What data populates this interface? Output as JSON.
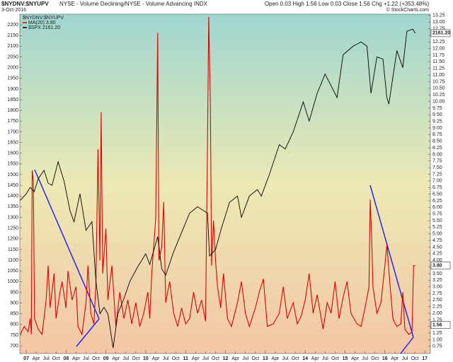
{
  "chart_data": {
    "type": "line",
    "title": "$NYDNV:$NYUPV",
    "subtitle": "NYSE - Volume Declining/NYSE - Volume Advancing INDX",
    "date": "3-Oct-2016",
    "quote": "Open 0.03 High 1.56 Low 0.03 Close 1.56 Chg +1.22 (+353.48%)",
    "credit": "© StockCharts.com",
    "legend_title": "$NYDNV:$NYUPV",
    "legend": "upper left",
    "grid": false,
    "xlim": [
      2006.84,
      2017.14
    ],
    "ylim": [
      664,
      2250
    ],
    "y2lim": [
      0.48,
      13.3
    ],
    "xticks": [
      {
        "value": 2007,
        "label": "07"
      },
      {
        "value": 2007.25,
        "label": "Apr"
      },
      {
        "value": 2007.5,
        "label": "Jul"
      },
      {
        "value": 2007.75,
        "label": "Oct"
      },
      {
        "value": 2008,
        "label": "08"
      },
      {
        "value": 2008.25,
        "label": "Apr"
      },
      {
        "value": 2008.5,
        "label": "Jul"
      },
      {
        "value": 2008.75,
        "label": "Oct"
      },
      {
        "value": 2009,
        "label": "09"
      },
      {
        "value": 2009.25,
        "label": "Apr"
      },
      {
        "value": 2009.5,
        "label": "Jul"
      },
      {
        "value": 2009.75,
        "label": "Oct"
      },
      {
        "value": 2010,
        "label": "10"
      },
      {
        "value": 2010.25,
        "label": "Apr"
      },
      {
        "value": 2010.5,
        "label": "Jul"
      },
      {
        "value": 2010.75,
        "label": "Oct"
      },
      {
        "value": 2011,
        "label": "11"
      },
      {
        "value": 2011.25,
        "label": "Apr"
      },
      {
        "value": 2011.5,
        "label": "Jul"
      },
      {
        "value": 2011.75,
        "label": "Oct"
      },
      {
        "value": 2012,
        "label": "12"
      },
      {
        "value": 2012.25,
        "label": "Apr"
      },
      {
        "value": 2012.5,
        "label": "Jul"
      },
      {
        "value": 2012.75,
        "label": "Oct"
      },
      {
        "value": 2013,
        "label": "13"
      },
      {
        "value": 2013.25,
        "label": "Apr"
      },
      {
        "value": 2013.5,
        "label": "Jul"
      },
      {
        "value": 2013.75,
        "label": "Oct"
      },
      {
        "value": 2014,
        "label": "14"
      },
      {
        "value": 2014.25,
        "label": "Apr"
      },
      {
        "value": 2014.5,
        "label": "Jul"
      },
      {
        "value": 2014.75,
        "label": "Oct"
      },
      {
        "value": 2015,
        "label": "15"
      },
      {
        "value": 2015.25,
        "label": "Apr"
      },
      {
        "value": 2015.5,
        "label": "Jul"
      },
      {
        "value": 2015.75,
        "label": "Oct"
      },
      {
        "value": 2016,
        "label": "16"
      },
      {
        "value": 2016.25,
        "label": "Apr"
      },
      {
        "value": 2016.5,
        "label": "Jul"
      },
      {
        "value": 2016.75,
        "label": "Oct"
      },
      {
        "value": 2017,
        "label": "17"
      }
    ],
    "yticks": [
      700,
      750,
      800,
      850,
      900,
      950,
      1000,
      1050,
      1100,
      1150,
      1200,
      1250,
      1300,
      1350,
      1400,
      1450,
      1500,
      1550,
      1600,
      1650,
      1700,
      1750,
      1800,
      1850,
      1900,
      1950,
      2000,
      2050,
      2100,
      2150,
      2200
    ],
    "y2ticks": [
      0.75,
      {
        "value": 1,
        "label": "1.00"
      },
      1.25,
      {
        "value": 1.5,
        "label": "1.50"
      },
      1.75,
      {
        "value": 2,
        "label": "2.00"
      },
      2.25,
      {
        "value": 2.5,
        "label": "2.50"
      },
      2.75,
      {
        "value": 3,
        "label": "3.00"
      },
      3.25,
      {
        "value": 3.5,
        "label": "3.50"
      },
      3.75,
      {
        "value": 4,
        "label": "4.00"
      },
      4.25,
      {
        "value": 4.5,
        "label": "4.50"
      },
      4.75,
      {
        "value": 5,
        "label": "5.00"
      },
      5.25,
      {
        "value": 5.5,
        "label": "5.50"
      },
      5.75,
      {
        "value": 6,
        "label": "6.00"
      },
      6.25,
      {
        "value": 6.5,
        "label": "6.50"
      },
      6.75,
      {
        "value": 7,
        "label": "7.00"
      },
      7.25,
      {
        "value": 7.5,
        "label": "7.50"
      },
      7.75,
      {
        "value": 8,
        "label": "8.00"
      },
      8.25,
      {
        "value": 8.5,
        "label": "8.50"
      },
      8.75,
      {
        "value": 9,
        "label": "9.00"
      },
      9.25,
      {
        "value": 9.5,
        "label": "9.50"
      },
      9.75,
      {
        "value": 10,
        "label": "10.00"
      },
      10.25,
      {
        "value": 10.5,
        "label": "10.50"
      },
      10.75,
      {
        "value": 11,
        "label": "11.00"
      },
      11.25,
      {
        "value": 11.5,
        "label": "11.50"
      },
      11.75,
      {
        "value": 12,
        "label": "12.00"
      },
      12.25,
      {
        "value": 12.5,
        "label": "12.50"
      },
      12.75,
      {
        "value": 13,
        "label": "13.00"
      },
      13.25
    ],
    "price_tags": [
      {
        "value": 2161.2,
        "label": "2161.20",
        "axis": "y"
      },
      {
        "value": 3.8,
        "label": "3.80",
        "axis": "y2"
      },
      {
        "value": 1.56,
        "label": "1.56",
        "axis": "y2"
      }
    ],
    "series": [
      {
        "name": "MA(20) 3.80",
        "color": "#dd0000",
        "axis": "y2",
        "x": [
          2006.85,
          2006.95,
          2007.05,
          2007.1,
          2007.13,
          2007.15,
          2007.18,
          2007.21,
          2007.3,
          2007.4,
          2007.5,
          2007.55,
          2007.6,
          2007.7,
          2007.75,
          2007.85,
          2007.9,
          2008.0,
          2008.05,
          2008.15,
          2008.25,
          2008.3,
          2008.4,
          2008.5,
          2008.55,
          2008.62,
          2008.7,
          2008.75,
          2008.8,
          2008.85,
          2008.88,
          2008.92,
          2009.0,
          2009.05,
          2009.15,
          2009.25,
          2009.35,
          2009.45,
          2009.55,
          2009.65,
          2009.75,
          2009.85,
          2009.95,
          2010.05,
          2010.1,
          2010.15,
          2010.25,
          2010.3,
          2010.33,
          2010.4,
          2010.45,
          2010.5,
          2010.6,
          2010.7,
          2010.8,
          2010.9,
          2011.0,
          2011.1,
          2011.2,
          2011.3,
          2011.4,
          2011.5,
          2011.55,
          2011.58,
          2011.62,
          2011.65,
          2011.7,
          2011.75,
          2011.8,
          2011.88,
          2011.95,
          2012.05,
          2012.15,
          2012.3,
          2012.4,
          2012.5,
          2012.6,
          2012.75,
          2012.85,
          2012.95,
          2013.05,
          2013.2,
          2013.35,
          2013.45,
          2013.55,
          2013.7,
          2013.8,
          2013.9,
          2014.0,
          2014.1,
          2014.2,
          2014.3,
          2014.45,
          2014.55,
          2014.65,
          2014.75,
          2014.85,
          2014.95,
          2015.05,
          2015.15,
          2015.3,
          2015.4,
          2015.5,
          2015.6,
          2015.63,
          2015.67,
          2015.7,
          2015.8,
          2015.9,
          2016.0,
          2016.05,
          2016.12,
          2016.2,
          2016.3,
          2016.4,
          2016.45,
          2016.5,
          2016.6,
          2016.68,
          2016.72,
          2016.76
        ],
        "values": [
          1.2,
          1.5,
          1.3,
          1.8,
          1.2,
          7.4,
          7.0,
          1.8,
          1.4,
          1.2,
          2.5,
          3.8,
          2.2,
          3.5,
          1.8,
          2.8,
          3.2,
          2.2,
          3.6,
          2.5,
          3.0,
          1.5,
          1.2,
          2.4,
          3.8,
          2.0,
          1.6,
          3.2,
          8.2,
          4.0,
          9.6,
          3.5,
          5.2,
          2.5,
          3.8,
          1.5,
          2.8,
          1.8,
          2.5,
          1.6,
          2.4,
          1.5,
          2.0,
          2.8,
          1.8,
          3.5,
          5.6,
          12.6,
          4.0,
          4.5,
          6.2,
          2.4,
          3.2,
          2.0,
          1.5,
          2.2,
          1.6,
          1.8,
          2.8,
          2.0,
          2.5,
          1.7,
          8.5,
          13.2,
          10.0,
          3.8,
          5.5,
          4.0,
          3.0,
          2.2,
          3.5,
          1.8,
          1.5,
          2.4,
          3.2,
          2.0,
          1.5,
          2.2,
          2.8,
          3.3,
          1.5,
          1.6,
          2.0,
          3.0,
          1.8,
          2.4,
          1.6,
          1.9,
          2.5,
          3.5,
          2.0,
          2.7,
          1.4,
          2.4,
          2.0,
          3.2,
          1.8,
          2.6,
          3.2,
          2.0,
          1.6,
          1.5,
          2.2,
          3.0,
          6.3,
          4.8,
          3.0,
          2.0,
          2.4,
          3.8,
          4.6,
          3.2,
          1.8,
          1.5,
          1.6,
          2.8,
          1.4,
          1.2,
          1.3,
          3.8,
          3.8
        ]
      },
      {
        "name": "$SPX 2161.20",
        "color": "#000000",
        "axis": "y",
        "x": [
          2006.85,
          2007.0,
          2007.1,
          2007.2,
          2007.3,
          2007.45,
          2007.55,
          2007.65,
          2007.8,
          2007.95,
          2008.1,
          2008.2,
          2008.35,
          2008.5,
          2008.65,
          2008.75,
          2008.85,
          2008.95,
          2009.05,
          2009.18,
          2009.3,
          2009.45,
          2009.6,
          2009.8,
          2010.0,
          2010.1,
          2010.3,
          2010.4,
          2010.5,
          2010.7,
          2010.9,
          2011.1,
          2011.3,
          2011.55,
          2011.6,
          2011.75,
          2011.9,
          2012.1,
          2012.3,
          2012.4,
          2012.6,
          2012.8,
          2012.9,
          2013.1,
          2013.35,
          2013.5,
          2013.7,
          2013.95,
          2014.1,
          2014.3,
          2014.5,
          2014.8,
          2014.95,
          2015.2,
          2015.4,
          2015.55,
          2015.65,
          2015.8,
          2015.95,
          2016.05,
          2016.1,
          2016.3,
          2016.45,
          2016.55,
          2016.7,
          2016.76
        ],
        "values": [
          1380,
          1410,
          1440,
          1420,
          1480,
          1520,
          1460,
          1450,
          1560,
          1470,
          1330,
          1280,
          1410,
          1240,
          1280,
          1000,
          850,
          880,
          850,
          690,
          850,
          920,
          1000,
          1070,
          1130,
          1080,
          1210,
          1060,
          1030,
          1140,
          1230,
          1320,
          1350,
          1320,
          1120,
          1150,
          1250,
          1370,
          1400,
          1300,
          1400,
          1430,
          1400,
          1500,
          1640,
          1620,
          1700,
          1840,
          1750,
          1880,
          1970,
          1860,
          2060,
          2100,
          2120,
          2100,
          1880,
          2050,
          2040,
          1860,
          1830,
          2080,
          2000,
          2170,
          2180,
          2161
        ]
      }
    ]
  }
}
